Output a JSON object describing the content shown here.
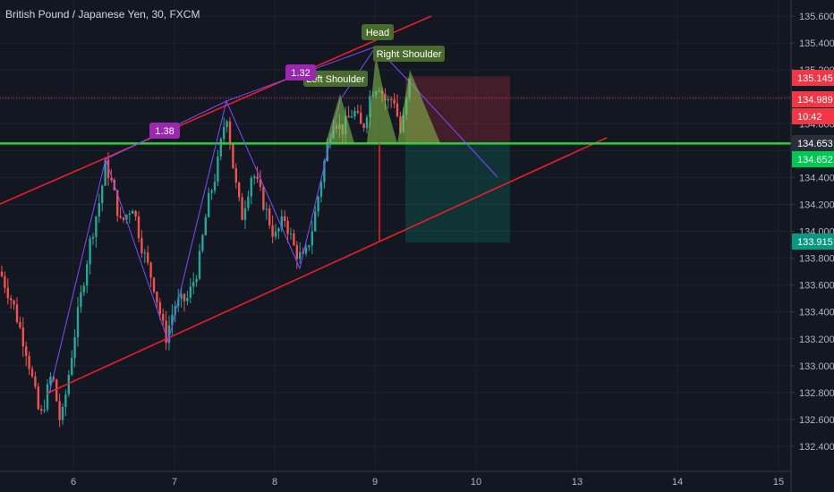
{
  "header": {
    "title": "British Pound / Japanese Yen, 30, FXCM"
  },
  "chart_data": {
    "type": "candlestick",
    "title": "British Pound / Japanese Yen, 30, FXCM",
    "x_ticks": [
      "6",
      "7",
      "8",
      "9",
      "10",
      "13",
      "14",
      "15"
    ],
    "y_ticks": [
      "132.400",
      "132.600",
      "132.800",
      "133.000",
      "133.200",
      "133.400",
      "133.600",
      "133.800",
      "134.000",
      "134.200",
      "134.400",
      "134.600",
      "134.800",
      "135.000",
      "135.200",
      "135.400",
      "135.600"
    ],
    "ylim": [
      132.3,
      135.75
    ],
    "price_tags": [
      {
        "label": "135.145",
        "color": "#f23645"
      },
      {
        "label": "134.989",
        "color": "#f23645"
      },
      {
        "label": "10:42",
        "color": "#f23645"
      },
      {
        "label": "134.653",
        "color": "#2a2e39"
      },
      {
        "label": "134.652",
        "color": "#00c853"
      },
      {
        "label": "133.915",
        "color": "#089981"
      }
    ],
    "pattern_labels": {
      "head": "Head",
      "left_shoulder": "Left Shoulder",
      "right_shoulder": "Right Shoulder",
      "ratio_a": "1.32",
      "ratio_b": "1.38"
    },
    "neckline_price": 134.653,
    "current_price": 134.989,
    "target_price": 133.915,
    "stop_price": 135.145,
    "colors": {
      "up": "#26a69a",
      "down": "#ef5350",
      "channel": "#e91e2a",
      "neckline": "#2ecc40",
      "zigzag": "#7b4dff",
      "ratio_tag": "#9c27b0",
      "pattern_fill": "#8bc34a",
      "pattern_label": "#4a6b2e"
    }
  }
}
